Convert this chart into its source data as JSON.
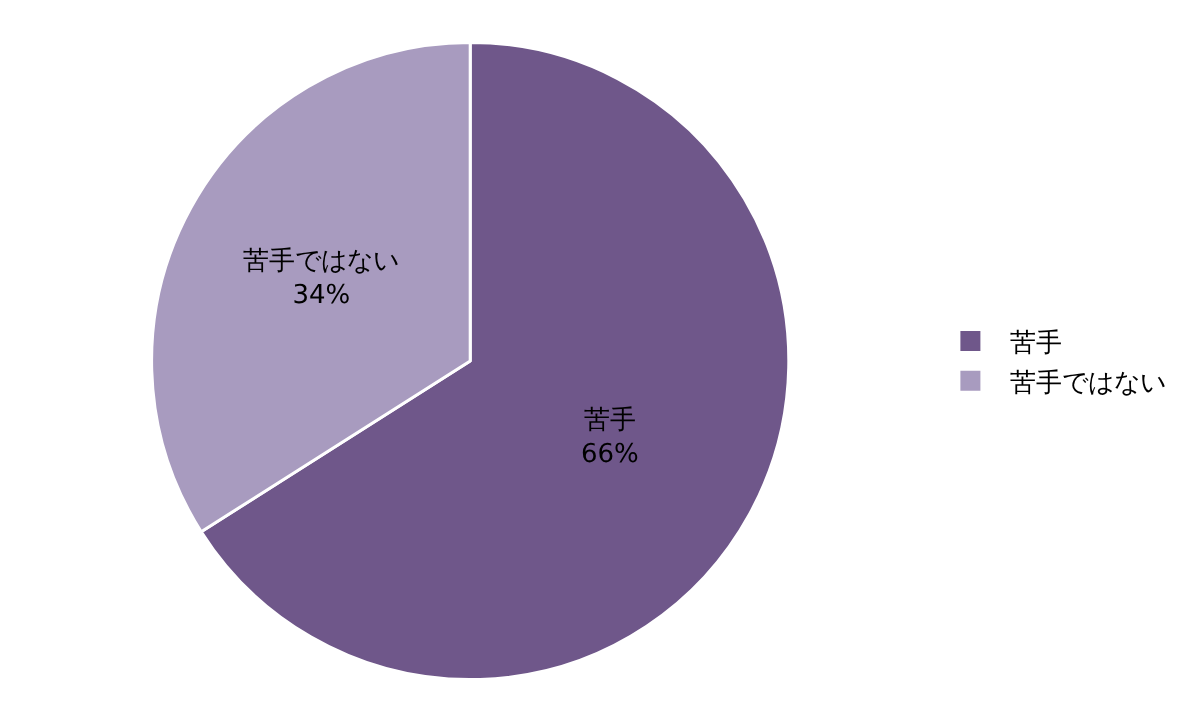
{
  "chart_data": {
    "type": "pie",
    "categories": [
      "苦手",
      "苦手ではない"
    ],
    "values": [
      66,
      34
    ],
    "colors": [
      "#6f578a",
      "#a89bbf"
    ],
    "value_labels": [
      "66%",
      "34%"
    ],
    "legend": "right"
  }
}
